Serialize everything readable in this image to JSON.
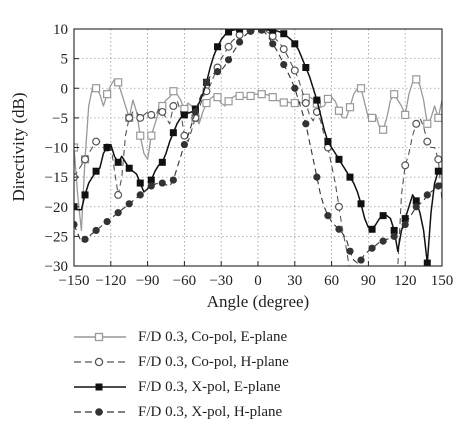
{
  "chart_data": {
    "type": "line",
    "xlabel": "Angle (degree)",
    "ylabel": "Directivity (dB)",
    "xlim": [
      -150,
      150
    ],
    "ylim": [
      -30,
      10
    ],
    "xticks": [
      -150,
      -120,
      -90,
      -60,
      -30,
      0,
      30,
      60,
      90,
      120,
      150
    ],
    "yticks": [
      10,
      5,
      0,
      -5,
      -10,
      -15,
      -20,
      -25,
      -30
    ],
    "xtick_labels": [
      "−150",
      "−120",
      "−90",
      "−60",
      "−30",
      "0",
      "30",
      "60",
      "90",
      "120",
      "150"
    ],
    "ytick_labels": [
      "10",
      "5",
      "0",
      "−5",
      "−10",
      "−15",
      "−20",
      "−25",
      "−30"
    ],
    "grid": true,
    "legend_position": "below",
    "series": [
      {
        "name": "F/D 0.3, Co-pol, E-plane",
        "color": "#999999",
        "line": "solid",
        "marker": "open-square",
        "x": [
          -150,
          -147,
          -144,
          -141,
          -138,
          -135,
          -132,
          -129,
          -126,
          -123,
          -120,
          -117,
          -114,
          -111,
          -108,
          -105,
          -102,
          -99,
          -96,
          -93,
          -90,
          -87,
          -84,
          -81,
          -78,
          -75,
          -72,
          -69,
          -66,
          -63,
          -60,
          -57,
          -54,
          -51,
          -48,
          -45,
          -42,
          -39,
          -36,
          -33,
          -30,
          -27,
          -24,
          -21,
          -18,
          -15,
          -12,
          -9,
          -6,
          -3,
          0,
          3,
          6,
          9,
          12,
          15,
          18,
          21,
          24,
          27,
          30,
          33,
          36,
          39,
          42,
          45,
          48,
          51,
          54,
          57,
          60,
          63,
          66,
          69,
          72,
          75,
          78,
          81,
          84,
          87,
          90,
          93,
          96,
          99,
          102,
          105,
          108,
          111,
          114,
          117,
          120,
          123,
          126,
          129,
          132,
          135,
          138,
          141,
          144,
          147,
          150
        ],
        "y": [
          -10,
          -18,
          -24,
          -12,
          -3,
          0,
          0,
          -1,
          -3,
          -1,
          0.5,
          1.5,
          1,
          -1,
          -3,
          -5,
          -2,
          -4,
          -8,
          -11,
          -12,
          -8,
          -6,
          -4,
          -3,
          -2,
          -1.5,
          -0.5,
          -1,
          -2,
          -3.5,
          -2.5,
          -3,
          -5,
          -6,
          -4,
          -2.5,
          -1.8,
          -1.3,
          -1.5,
          -2.5,
          -3,
          -2.2,
          -1.6,
          -1.2,
          -1.3,
          -1.5,
          -1.6,
          -1.3,
          -1,
          -1,
          -1,
          -1,
          -1.2,
          -1.5,
          -2,
          -2.2,
          -2.4,
          -2.3,
          -2.5,
          -2.5,
          -2.3,
          -2.5,
          -1.6,
          -1.5,
          -1.8,
          -2.6,
          -3.2,
          -3,
          -1.8,
          -1.5,
          -2.2,
          -3.8,
          -5,
          -5,
          -3.2,
          -1,
          0,
          0,
          -2.5,
          -5,
          -5,
          -4.5,
          -6.5,
          -7,
          -5,
          -2,
          -1,
          -2,
          -3,
          -4.5,
          -1,
          1,
          1.5,
          0.5,
          -2,
          -6,
          -5,
          -3,
          -5,
          -2
        ]
      },
      {
        "name": "F/D 0.3, Co-pol, H-plane",
        "color": "#555555",
        "line": "dashed",
        "marker": "open-circle",
        "x": [
          -150,
          -147,
          -144,
          -141,
          -138,
          -135,
          -132,
          -129,
          -126,
          -123,
          -120,
          -117,
          -114,
          -111,
          -108,
          -105,
          -102,
          -99,
          -96,
          -93,
          -90,
          -87,
          -84,
          -81,
          -78,
          -75,
          -72,
          -69,
          -66,
          -63,
          -60,
          -57,
          -54,
          -51,
          -48,
          -45,
          -42,
          -39,
          -36,
          -33,
          -30,
          -27,
          -24,
          -21,
          -18,
          -15,
          -12,
          -9,
          -6,
          -3,
          0,
          3,
          6,
          9,
          12,
          15,
          18,
          21,
          24,
          27,
          30,
          33,
          36,
          39,
          42,
          45,
          48,
          51,
          54,
          57,
          60,
          63,
          66,
          69,
          72,
          75,
          78,
          81,
          84,
          87,
          90,
          93,
          96,
          99,
          102,
          105,
          108,
          111,
          114,
          117,
          120,
          123,
          126,
          129,
          132,
          135,
          138,
          141,
          144,
          147,
          150
        ],
        "y": [
          -15,
          -14,
          -13,
          -12,
          -11,
          -10,
          -9,
          -9,
          -9.5,
          -10,
          -9.5,
          -14,
          -18,
          -15,
          -8,
          -5,
          -4,
          -4,
          -5,
          -4.5,
          -4,
          -4.5,
          -5,
          -3.5,
          -4,
          -5,
          -6,
          -3,
          -2,
          -4,
          -8,
          -9,
          -7,
          -5,
          -3.5,
          -1.5,
          -0.5,
          0.5,
          2,
          3.5,
          5,
          6,
          7,
          8,
          8.5,
          9,
          9.3,
          9.6,
          9.8,
          10,
          10,
          10,
          9.7,
          9.3,
          8.8,
          8.2,
          7.5,
          6.6,
          5.5,
          4.2,
          3,
          1.5,
          -0.5,
          -2.5,
          -4.5,
          -5.5,
          -4,
          -5.5,
          -8,
          -10,
          -13,
          -16,
          -20,
          -24,
          -27,
          -31,
          -31,
          -31,
          -31,
          -31,
          -31,
          -31,
          -31,
          -31,
          -31,
          -31,
          -31,
          -31,
          -30,
          -18,
          -13,
          -11,
          -8,
          -6,
          -5,
          -6.5,
          -9,
          -10,
          -10,
          -12,
          -19
        ]
      },
      {
        "name": "F/D 0.3, X-pol, E-plane",
        "color": "#111111",
        "line": "solid",
        "marker": "filled-square",
        "x": [
          -150,
          -147,
          -144,
          -141,
          -138,
          -135,
          -132,
          -129,
          -126,
          -123,
          -120,
          -117,
          -114,
          -111,
          -108,
          -105,
          -102,
          -99,
          -96,
          -93,
          -90,
          -87,
          -84,
          -81,
          -78,
          -75,
          -72,
          -69,
          -66,
          -63,
          -60,
          -57,
          -54,
          -51,
          -48,
          -45,
          -42,
          -39,
          -36,
          -33,
          -30,
          -27,
          -24,
          -21,
          -18,
          -15,
          -12,
          -9,
          -6,
          -3,
          0,
          3,
          6,
          9,
          12,
          15,
          18,
          21,
          24,
          27,
          30,
          33,
          36,
          39,
          42,
          45,
          48,
          51,
          54,
          57,
          60,
          63,
          66,
          69,
          72,
          75,
          78,
          81,
          84,
          87,
          90,
          93,
          96,
          99,
          102,
          105,
          108,
          111,
          114,
          117,
          120,
          123,
          126,
          129,
          132,
          135,
          138,
          141,
          144,
          147,
          150
        ],
        "y": [
          -20,
          -20.5,
          -20.5,
          -18,
          -16,
          -15,
          -14,
          -13.5,
          -11,
          -10,
          -9.5,
          -11.5,
          -12.5,
          -11.5,
          -12.5,
          -13.5,
          -14,
          -14.5,
          -16,
          -17.5,
          -17,
          -15.5,
          -14,
          -13,
          -12.5,
          -11,
          -9,
          -7.5,
          -6,
          -5,
          -4.5,
          -4.2,
          -4,
          -3.5,
          -2.5,
          -1,
          1,
          3.5,
          5.5,
          7,
          8.2,
          9,
          9.5,
          9.8,
          9.9,
          10,
          10,
          10,
          10,
          10,
          10,
          10,
          9.9,
          9.8,
          9.8,
          9.7,
          9.5,
          9.2,
          8.7,
          8.2,
          7.5,
          6.5,
          5,
          3.5,
          2,
          0,
          -2,
          -4.5,
          -7,
          -9,
          -10,
          -11,
          -12,
          -13,
          -14,
          -15,
          -16,
          -17.5,
          -19.5,
          -22,
          -23.5,
          -23.8,
          -23,
          -22,
          -21.5,
          -21.5,
          -22,
          -24,
          -27.5,
          -24,
          -22,
          -20,
          -18,
          -19,
          -21,
          -24,
          -29.5,
          -21,
          -16,
          -14,
          -14.5
        ]
      },
      {
        "name": "F/D 0.3, X-pol, H-plane",
        "color": "#333333",
        "line": "dashed",
        "marker": "filled-circle",
        "x": [
          -150,
          -147,
          -144,
          -141,
          -138,
          -135,
          -132,
          -129,
          -126,
          -123,
          -120,
          -117,
          -114,
          -111,
          -108,
          -105,
          -102,
          -99,
          -96,
          -93,
          -90,
          -87,
          -84,
          -81,
          -78,
          -75,
          -72,
          -69,
          -66,
          -63,
          -60,
          -57,
          -54,
          -51,
          -48,
          -45,
          -42,
          -39,
          -36,
          -33,
          -30,
          -27,
          -24,
          -21,
          -18,
          -15,
          -12,
          -9,
          -6,
          -3,
          0,
          3,
          6,
          9,
          12,
          15,
          18,
          21,
          24,
          27,
          30,
          33,
          36,
          39,
          42,
          45,
          48,
          51,
          54,
          57,
          60,
          63,
          66,
          69,
          72,
          75,
          78,
          81,
          84,
          87,
          90,
          93,
          96,
          99,
          102,
          105,
          108,
          111,
          114,
          117,
          120,
          123,
          126,
          129,
          132,
          135,
          138,
          141,
          144,
          147,
          150
        ],
        "y": [
          -23,
          -24.5,
          -26,
          -25.5,
          -25,
          -24.5,
          -24,
          -23.5,
          -23,
          -22.5,
          -22,
          -21.5,
          -21,
          -20.5,
          -20,
          -19.5,
          -19,
          -18.5,
          -18,
          -17.5,
          -17,
          -16.5,
          -16.2,
          -16,
          -16,
          -16.3,
          -16.5,
          -15.5,
          -13.5,
          -11.5,
          -9.5,
          -8,
          -6,
          -4,
          -2,
          -0.5,
          1,
          2,
          2.5,
          2.8,
          3,
          3.8,
          4.8,
          5.8,
          6.8,
          7.8,
          8.6,
          9.2,
          9.6,
          9.9,
          10,
          9.8,
          9.3,
          8.5,
          7.5,
          6.5,
          5.3,
          4,
          2.8,
          1.5,
          0,
          -2,
          -4,
          -6,
          -9,
          -12,
          -15,
          -18,
          -20,
          -21.5,
          -22.5,
          -23.2,
          -23.8,
          -24.5,
          -25.5,
          -27.5,
          -29,
          -29.5,
          -29,
          -28,
          -27.5,
          -27,
          -26.5,
          -26,
          -25.8,
          -25.5,
          -25.3,
          -25,
          -24.5,
          -24,
          -23,
          -22,
          -21,
          -20,
          -19.5,
          -19,
          -18,
          -17.5,
          -17,
          -16.5,
          -16
        ]
      }
    ]
  }
}
